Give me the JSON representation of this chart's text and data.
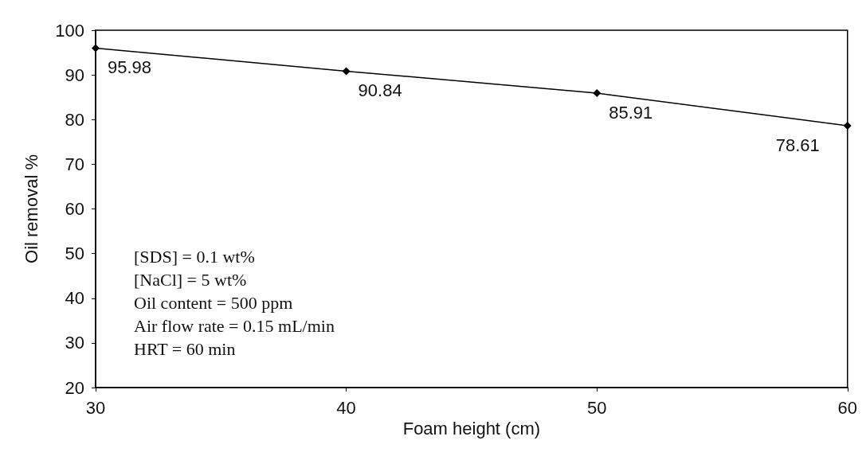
{
  "chart_data": {
    "type": "line",
    "xlabel": "Foam height (cm)",
    "ylabel": "Oil removal %",
    "x": [
      30,
      40,
      50,
      60
    ],
    "values": [
      95.98,
      90.84,
      85.91,
      78.61
    ],
    "color": "#000000",
    "marker": "diamond",
    "line_style": "solid",
    "data_labels": true,
    "grid": false,
    "xlim": [
      30,
      60
    ],
    "xticks": [
      30,
      40,
      50,
      60
    ],
    "ylim": [
      20,
      100
    ],
    "yticks": [
      20,
      30,
      40,
      50,
      60,
      70,
      80,
      90,
      100
    ],
    "annotations": [
      "[SDS] = 0.1 wt%",
      "[NaCl] = 5 wt%",
      "Oil content = 500 ppm",
      "Air flow rate = 0.15 mL/min",
      "HRT = 60 min"
    ]
  }
}
